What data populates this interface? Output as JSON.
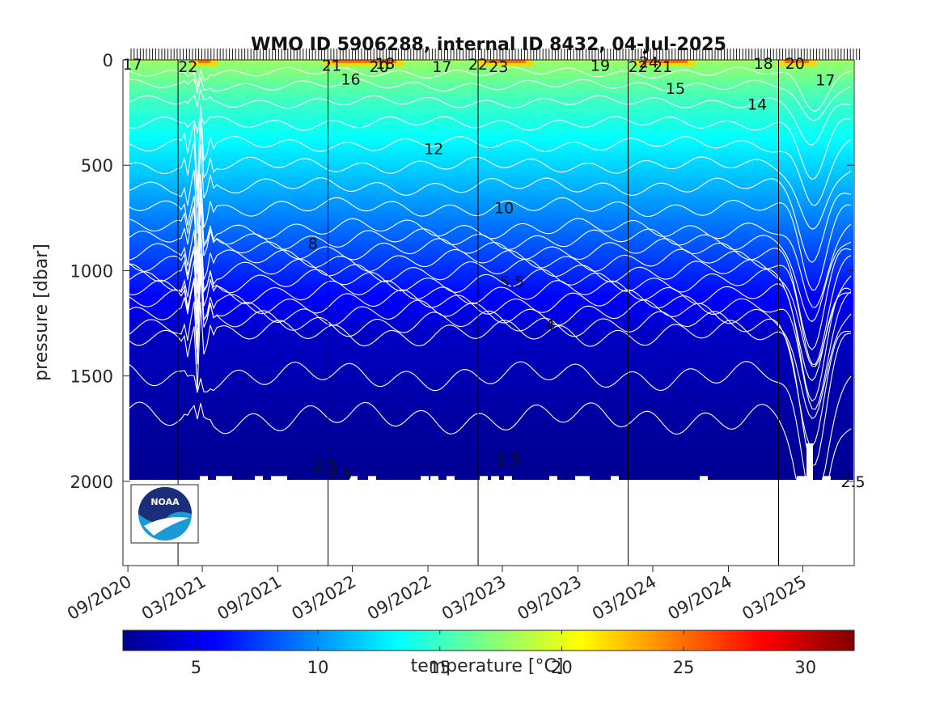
{
  "chart_data": {
    "type": "heatmap",
    "title": "WMO ID 5906288, internal ID 8432, 04-Jul-2025",
    "ylabel": "pressure [dbar]",
    "colorbar_label": "temperature [°C]",
    "y_reversed": true,
    "ylim": [
      0,
      2400
    ],
    "yticks": [
      0,
      500,
      1000,
      1500,
      2000
    ],
    "ytick_labels": [
      "0",
      "500",
      "1000",
      "1500",
      "2000"
    ],
    "xlim": [
      "2020-08-20",
      "2025-07-04"
    ],
    "xticks": [
      "2020-09-01",
      "2021-03-01",
      "2021-09-01",
      "2022-03-01",
      "2022-09-01",
      "2023-03-01",
      "2023-09-01",
      "2024-03-01",
      "2024-09-01",
      "2025-03-01"
    ],
    "xtick_labels": [
      "09/2020",
      "03/2021",
      "09/2021",
      "03/2022",
      "09/2022",
      "03/2023",
      "09/2023",
      "03/2024",
      "09/2024",
      "03/2025"
    ],
    "year_lines": [
      "2021-01-01",
      "2022-01-01",
      "2023-01-01",
      "2024-01-01",
      "2025-01-01"
    ],
    "colorbar_range": [
      2,
      32
    ],
    "colorbar_ticks": [
      5,
      10,
      15,
      20,
      25,
      30
    ],
    "colorbar_tick_labels": [
      "5",
      "10",
      "15",
      "20",
      "25",
      "30"
    ],
    "colormap": "jet",
    "profile_max_depth_dbar": 2000,
    "temperature_profile": [
      {
        "pressure": 0,
        "temperature": 18
      },
      {
        "pressure": 20,
        "temperature": 17.5
      },
      {
        "pressure": 60,
        "temperature": 17
      },
      {
        "pressure": 120,
        "temperature": 16
      },
      {
        "pressure": 200,
        "temperature": 15
      },
      {
        "pressure": 300,
        "temperature": 14
      },
      {
        "pressure": 450,
        "temperature": 12.5
      },
      {
        "pressure": 600,
        "temperature": 11
      },
      {
        "pressure": 750,
        "temperature": 9.5
      },
      {
        "pressure": 900,
        "temperature": 8
      },
      {
        "pressure": 1000,
        "temperature": 7
      },
      {
        "pressure": 1100,
        "temperature": 6
      },
      {
        "pressure": 1200,
        "temperature": 5
      },
      {
        "pressure": 1300,
        "temperature": 4
      },
      {
        "pressure": 1500,
        "temperature": 3.5
      },
      {
        "pressure": 1700,
        "temperature": 3
      },
      {
        "pressure": 2000,
        "temperature": 2.5
      }
    ],
    "contour_levels": [
      2.5,
      3,
      3.5,
      4,
      4.5,
      5,
      5.5,
      6,
      6.5,
      7,
      7.5,
      8,
      8.5,
      9,
      10,
      11,
      12,
      13,
      14,
      15,
      16,
      17,
      18,
      19,
      20,
      21,
      22
    ],
    "contour_labels": [
      {
        "text": "17",
        "date": "2020-09-12",
        "pressure": 20
      },
      {
        "text": "22",
        "date": "2021-01-25",
        "pressure": 30
      },
      {
        "text": "21",
        "date": "2022-01-10",
        "pressure": 25
      },
      {
        "text": "16",
        "date": "2022-02-25",
        "pressure": 90
      },
      {
        "text": "20",
        "date": "2022-05-05",
        "pressure": 30
      },
      {
        "text": "18",
        "date": "2022-05-20",
        "pressure": 15
      },
      {
        "text": "17",
        "date": "2022-10-05",
        "pressure": 30
      },
      {
        "text": "22",
        "date": "2023-01-01",
        "pressure": 20
      },
      {
        "text": "23",
        "date": "2023-02-20",
        "pressure": 30
      },
      {
        "text": "19",
        "date": "2023-10-25",
        "pressure": 25
      },
      {
        "text": "22",
        "date": "2024-01-25",
        "pressure": 30
      },
      {
        "text": "24",
        "date": "2024-02-20",
        "pressure": 10
      },
      {
        "text": "21",
        "date": "2024-03-25",
        "pressure": 30
      },
      {
        "text": "15",
        "date": "2024-04-25",
        "pressure": 135
      },
      {
        "text": "18",
        "date": "2024-11-25",
        "pressure": 15
      },
      {
        "text": "14",
        "date": "2024-11-10",
        "pressure": 210
      },
      {
        "text": "20",
        "date": "2025-02-10",
        "pressure": 15
      },
      {
        "text": "17",
        "date": "2025-04-25",
        "pressure": 95
      },
      {
        "text": "12",
        "date": "2022-09-15",
        "pressure": 420
      },
      {
        "text": "10",
        "date": "2023-03-05",
        "pressure": 700
      },
      {
        "text": "8",
        "date": "2021-11-25",
        "pressure": 870
      },
      {
        "text": "5.5",
        "date": "2023-03-25",
        "pressure": 1050
      },
      {
        "text": "4",
        "date": "2023-06-25",
        "pressure": 1255
      },
      {
        "text": "2.5",
        "date": "2021-12-25",
        "pressure": 1920
      },
      {
        "text": "2.5",
        "date": "2022-01-30",
        "pressure": 1965
      },
      {
        "text": "2.5",
        "date": "2023-03-15",
        "pressure": 1890
      },
      {
        "text": "2.5",
        "date": "2025-07-01",
        "pressure": 2000
      }
    ]
  },
  "logo": {
    "text": "NOAA"
  }
}
